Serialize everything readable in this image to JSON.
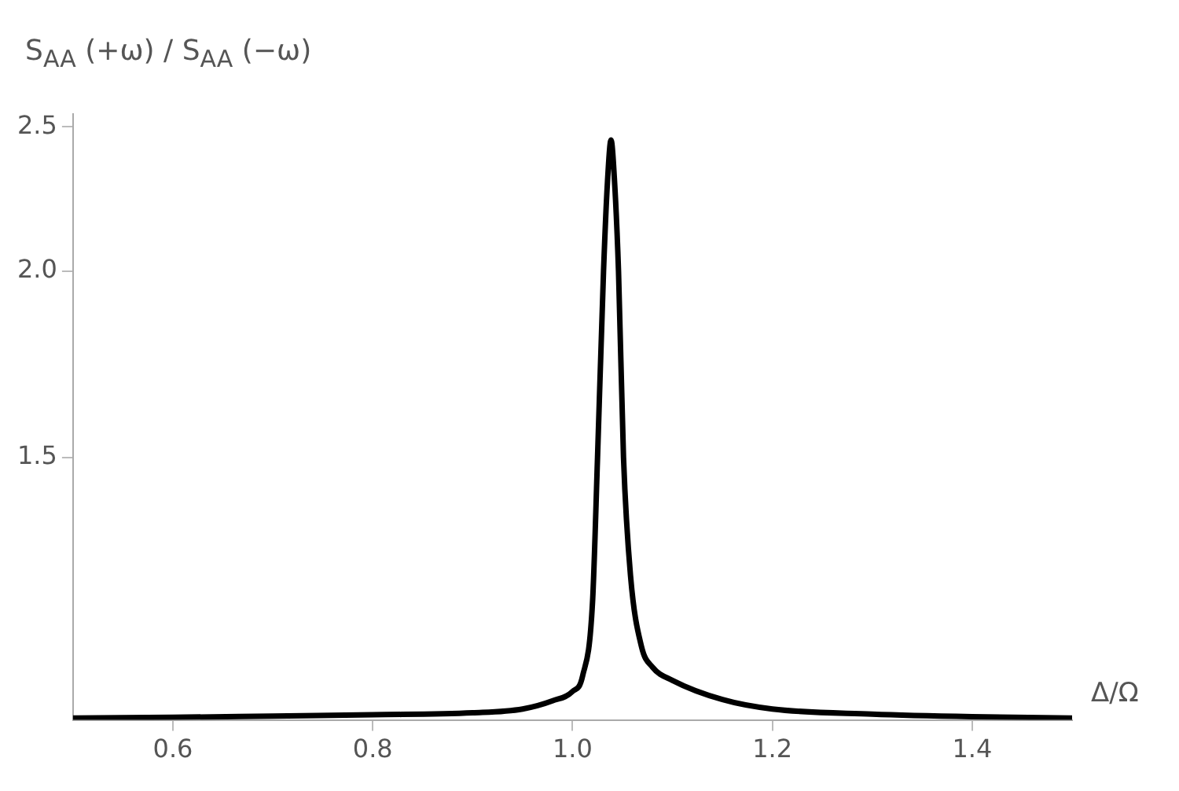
{
  "chart_data": {
    "type": "line",
    "xlabel": "Δ/Ω",
    "ylabel": "S$_{AA}$ (+ω) / S$_{AA}$ (−ω)",
    "series": [
      {
        "color": "#000000",
        "x": [
          0.5,
          0.6,
          0.7,
          0.8,
          0.9,
          0.95,
          0.98,
          1.0,
          1.01,
          1.02,
          1.025,
          1.031,
          1.035,
          1.0385,
          1.042,
          1.046,
          1.051,
          1.058,
          1.069,
          1.08,
          1.1,
          1.15,
          1.2,
          1.3,
          1.4,
          1.5
        ],
        "values": [
          1.003,
          1.004,
          1.006,
          1.008,
          1.011,
          1.017,
          1.03,
          1.045,
          1.07,
          1.2,
          1.5,
          2.0,
          2.3,
          2.45,
          2.3,
          2.0,
          1.5,
          1.25,
          1.12,
          1.085,
          1.063,
          1.032,
          1.017,
          1.009,
          1.005,
          1.003
        ]
      }
    ],
    "xlim": [
      0.5,
      1.5
    ],
    "xticks": [
      0.6,
      0.8,
      {
        "value": 1.0,
        "label": "1.0"
      },
      1.2,
      1.4
    ],
    "ylim": [
      1,
      2.55
    ],
    "yticks": [
      1.5,
      {
        "value": 2.0,
        "label": "2.0"
      },
      2.5
    ],
    "log": "y",
    "grid": false,
    "legend": false,
    "marker": "none",
    "line_style": "solid"
  }
}
